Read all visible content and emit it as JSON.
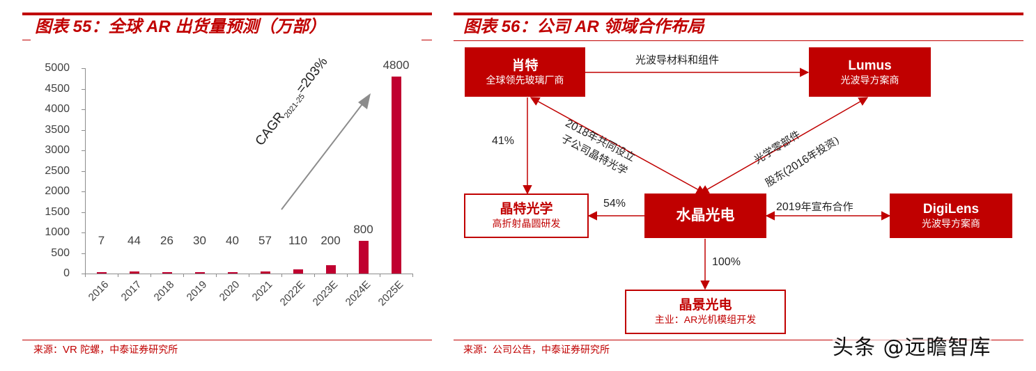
{
  "left_panel": {
    "title": "图表 55：全球 AR 出货量预测（万部）",
    "source_prefix": "来源：",
    "source_latin": "VR",
    "source_rest": " 陀螺，中泰证券研究所"
  },
  "right_panel": {
    "title": "图表 56：公司 AR 领域合作布局",
    "source": "来源：公司公告，中泰证券研究所"
  },
  "chart_data": {
    "type": "bar",
    "title": "全球 AR 出货量预测（万部）",
    "xlabel": "",
    "ylabel": "",
    "categories": [
      "2016",
      "2017",
      "2018",
      "2019",
      "2020",
      "2021",
      "2022E",
      "2023E",
      "2024E",
      "2025E"
    ],
    "values": [
      7,
      44,
      26,
      30,
      40,
      57,
      110,
      200,
      800,
      4800
    ],
    "value_labels": [
      "7",
      "44",
      "26",
      "30",
      "40",
      "57",
      "110",
      "200",
      "800",
      "4800"
    ],
    "ylim": [
      0,
      5000
    ],
    "yticks": [
      "0",
      "500",
      "1000",
      "1500",
      "2000",
      "2500",
      "3000",
      "3500",
      "4000",
      "4500",
      "5000"
    ],
    "grid": false,
    "legend": null,
    "bar_color": "#c00030",
    "annotation": {
      "text_main": "CAGR",
      "text_sub": "2021-25",
      "text_tail": "=203%",
      "arrow": "diagonal up-right grey arrow"
    }
  },
  "diagram": {
    "nodes": {
      "schott": {
        "name": "肖特",
        "desc": "全球领先玻璃厂商"
      },
      "lumus": {
        "name": "Lumus",
        "desc": "光波导方案商"
      },
      "jingte": {
        "name": "晶特光学",
        "desc": "高折射晶圆研发"
      },
      "crystal": {
        "name": "水晶光电",
        "desc": ""
      },
      "digilens": {
        "name": "DigiLens",
        "desc": "光波导方案商"
      },
      "jingjing": {
        "name": "晶景光电",
        "desc": "主业：AR光机模组开发"
      }
    },
    "edges": {
      "schott_lumus": "光波导材料和组件",
      "schott_jingte_pct": "41%",
      "crystal_schott_line1_num": "2018",
      "crystal_schott_line1": "年共同设立",
      "crystal_schott_line2": "子公司晶特光学",
      "crystal_lumus_line1": "光学零部件",
      "crystal_lumus_line2_a": "股东",
      "crystal_lumus_line2_b": "(2016",
      "crystal_lumus_line2_c": "年投资)",
      "crystal_jingte_pct": "54%",
      "crystal_digilens_num": "2019",
      "crystal_digilens": "年宣布合作",
      "crystal_jingjing_pct": "100%"
    },
    "accent_color": "#c00000"
  },
  "watermark": "头条 @远瞻智库"
}
